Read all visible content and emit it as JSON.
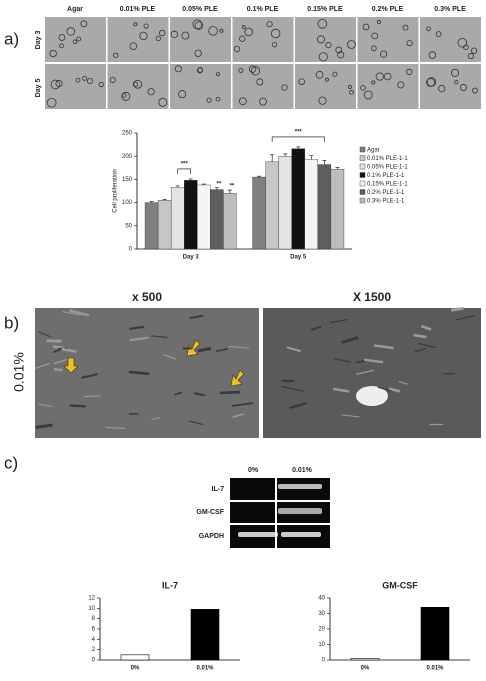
{
  "panels": {
    "a": "a)",
    "b": "b)",
    "c": "c)"
  },
  "panel_a": {
    "column_labels": [
      "Agar",
      "0.01% PLE",
      "0.05% PLE",
      "0.1% PLE",
      "0.15% PLE",
      "0.2% PLE",
      "0.3% PLE"
    ],
    "row_labels": [
      "Day 3",
      "Day 5"
    ]
  },
  "panel_b": {
    "titles": [
      "x 500",
      "X 1500"
    ],
    "row_label": "0.01%"
  },
  "panel_c": {
    "gel_columns": [
      "0%",
      "0.01%"
    ],
    "gel_rows": [
      "IL-7",
      "GM-CSF",
      "GAPDH"
    ]
  },
  "chart_data": [
    {
      "type": "bar",
      "ylabel": "Cell proliferation",
      "categories": [
        "Day 3",
        "Day 5"
      ],
      "series": [
        {
          "name": "Agar",
          "color": "#7f7f7f",
          "values": [
            100,
            155
          ],
          "errors": [
            2,
            2
          ]
        },
        {
          "name": "0.01% PLE-1-1",
          "color": "#c6c6c6",
          "values": [
            105,
            188
          ],
          "errors": [
            2,
            15
          ]
        },
        {
          "name": "0.05% PLE-1-1",
          "color": "#e4e4e4",
          "values": [
            133,
            200
          ],
          "errors": [
            3,
            5
          ]
        },
        {
          "name": "0.1% PLE-1-1",
          "color": "#111111",
          "values": [
            148,
            216
          ],
          "errors": [
            3,
            4
          ]
        },
        {
          "name": "0.15% PLE-1-1",
          "color": "#f4f4f4",
          "values": [
            138,
            193
          ],
          "errors": [
            2,
            8
          ]
        },
        {
          "name": "0.2% PLE-1-1",
          "color": "#5e5e5e",
          "values": [
            128,
            182
          ],
          "errors": [
            4,
            9
          ]
        },
        {
          "name": "0.3% PLE-1-1",
          "color": "#bdbdbd",
          "values": [
            120,
            172
          ],
          "errors": [
            7,
            4
          ]
        }
      ],
      "annotations": [
        "***",
        "**",
        "**",
        "***"
      ],
      "ylim": [
        0,
        250
      ],
      "yticks": [
        0,
        50,
        100,
        150,
        200,
        250
      ]
    },
    {
      "type": "bar",
      "title": "IL-7",
      "categories": [
        "0%",
        "0.01%"
      ],
      "values": [
        1,
        9.8
      ],
      "colors": [
        "#ffffff",
        "#000000"
      ],
      "ylim": [
        0,
        12
      ],
      "yticks": [
        0,
        2,
        4,
        6,
        8,
        10,
        12
      ]
    },
    {
      "type": "bar",
      "title": "GM-CSF",
      "categories": [
        "0%",
        "0.01%"
      ],
      "values": [
        1,
        34
      ],
      "colors": [
        "#ffffff",
        "#000000"
      ],
      "ylim": [
        0,
        40
      ],
      "yticks": [
        0,
        10,
        20,
        30,
        40
      ]
    }
  ]
}
